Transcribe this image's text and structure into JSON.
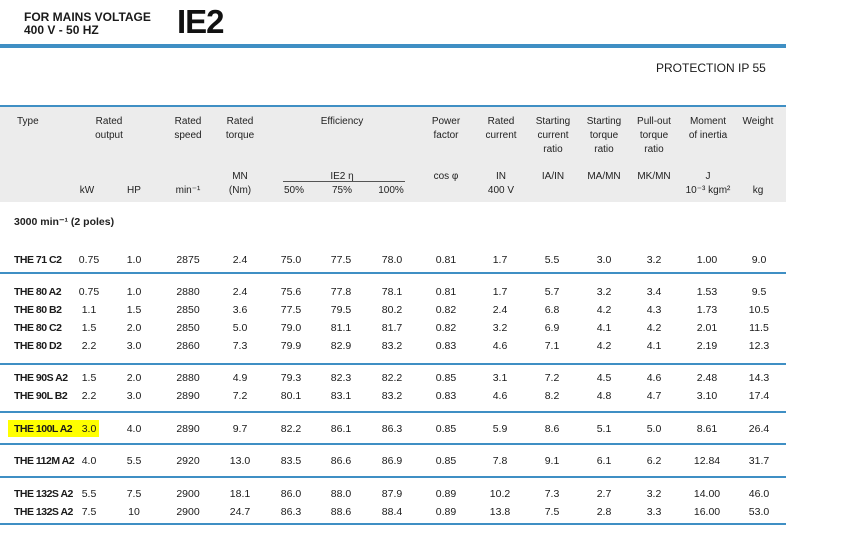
{
  "header": {
    "line1": "FOR MAINS VOLTAGE",
    "line2": "400 V - 50 HZ",
    "class": "IE2",
    "protection": "PROTECTION IP 55"
  },
  "columns": {
    "type": "Type",
    "rated_output": [
      "Rated",
      "output"
    ],
    "rated_speed": [
      "Rated",
      "speed"
    ],
    "rated_torque": [
      "Rated",
      "torque"
    ],
    "efficiency": "Efficiency",
    "power_factor": [
      "Power",
      "factor"
    ],
    "rated_current": [
      "Rated",
      "current"
    ],
    "starting_current_ratio": [
      "Starting",
      "current",
      "ratio"
    ],
    "starting_torque_ratio": [
      "Starting",
      "torque",
      "ratio"
    ],
    "pullout_torque_ratio": [
      "Pull-out",
      "torque",
      "ratio"
    ],
    "moment_of_inertia": [
      "Moment",
      "of inertia"
    ],
    "weight": "Weight"
  },
  "units": {
    "kw": "kW",
    "hp": "HP",
    "speed": "min⁻¹",
    "torque_sym": "MN",
    "torque_unit": "(Nm)",
    "eff_sym": "IE2 η",
    "eff50": "50%",
    "eff75": "75%",
    "eff100": "100%",
    "cos": "cos φ",
    "current_sym": "IN",
    "current_unit": "400 V",
    "ia_in": "IA/IN",
    "ma_mn": "MA/MN",
    "mk_mn": "MK/MN",
    "j": "J",
    "j_unit": "10⁻³ kgm²",
    "kg": "kg"
  },
  "section_title": "3000 min⁻¹ (2 poles)",
  "rows": [
    {
      "type": "THE 71 C2",
      "kw": "0.75",
      "hp": "1.0",
      "speed": "2875",
      "torque": "2.4",
      "e50": "75.0",
      "e75": "77.5",
      "e100": "78.0",
      "pf": "0.81",
      "cur": "1.7",
      "ia": "5.5",
      "ma": "3.0",
      "mk": "3.2",
      "j": "1.00",
      "kg": "9.0"
    },
    {
      "type": "THE 80 A2",
      "kw": "0.75",
      "hp": "1.0",
      "speed": "2880",
      "torque": "2.4",
      "e50": "75.6",
      "e75": "77.8",
      "e100": "78.1",
      "pf": "0.81",
      "cur": "1.7",
      "ia": "5.7",
      "ma": "3.2",
      "mk": "3.4",
      "j": "1.53",
      "kg": "9.5"
    },
    {
      "type": "THE 80 B2",
      "kw": "1.1",
      "hp": "1.5",
      "speed": "2850",
      "torque": "3.6",
      "e50": "77.5",
      "e75": "79.5",
      "e100": "80.2",
      "pf": "0.82",
      "cur": "2.4",
      "ia": "6.8",
      "ma": "4.2",
      "mk": "4.3",
      "j": "1.73",
      "kg": "10.5"
    },
    {
      "type": "THE 80 C2",
      "kw": "1.5",
      "hp": "2.0",
      "speed": "2850",
      "torque": "5.0",
      "e50": "79.0",
      "e75": "81.1",
      "e100": "81.7",
      "pf": "0.82",
      "cur": "3.2",
      "ia": "6.9",
      "ma": "4.1",
      "mk": "4.2",
      "j": "2.01",
      "kg": "11.5"
    },
    {
      "type": "THE 80 D2",
      "kw": "2.2",
      "hp": "3.0",
      "speed": "2860",
      "torque": "7.3",
      "e50": "79.9",
      "e75": "82.9",
      "e100": "83.2",
      "pf": "0.83",
      "cur": "4.6",
      "ia": "7.1",
      "ma": "4.2",
      "mk": "4.1",
      "j": "2.19",
      "kg": "12.3"
    },
    {
      "type": "THE 90S A2",
      "kw": "1.5",
      "hp": "2.0",
      "speed": "2880",
      "torque": "4.9",
      "e50": "79.3",
      "e75": "82.3",
      "e100": "82.2",
      "pf": "0.85",
      "cur": "3.1",
      "ia": "7.2",
      "ma": "4.5",
      "mk": "4.6",
      "j": "2.48",
      "kg": "14.3"
    },
    {
      "type": "THE 90L B2",
      "kw": "2.2",
      "hp": "3.0",
      "speed": "2890",
      "torque": "7.2",
      "e50": "80.1",
      "e75": "83.1",
      "e100": "83.2",
      "pf": "0.83",
      "cur": "4.6",
      "ia": "8.2",
      "ma": "4.8",
      "mk": "4.7",
      "j": "3.10",
      "kg": "17.4"
    },
    {
      "type": "THE 100L A2",
      "kw": "3.0",
      "hp": "4.0",
      "speed": "2890",
      "torque": "9.7",
      "e50": "82.2",
      "e75": "86.1",
      "e100": "86.3",
      "pf": "0.85",
      "cur": "5.9",
      "ia": "8.6",
      "ma": "5.1",
      "mk": "5.0",
      "j": "8.61",
      "kg": "26.4"
    },
    {
      "type": "THE 112M A2",
      "kw": "4.0",
      "hp": "5.5",
      "speed": "2920",
      "torque": "13.0",
      "e50": "83.5",
      "e75": "86.6",
      "e100": "86.9",
      "pf": "0.85",
      "cur": "7.8",
      "ia": "9.1",
      "ma": "6.1",
      "mk": "6.2",
      "j": "12.84",
      "kg": "31.7"
    },
    {
      "type": "THE 132S A2",
      "kw": "5.5",
      "hp": "7.5",
      "speed": "2900",
      "torque": "18.1",
      "e50": "86.0",
      "e75": "88.0",
      "e100": "87.9",
      "pf": "0.89",
      "cur": "10.2",
      "ia": "7.3",
      "ma": "2.7",
      "mk": "3.2",
      "j": "14.00",
      "kg": "46.0"
    },
    {
      "type": "THE 132S A2",
      "kw": "7.5",
      "hp": "10",
      "speed": "2900",
      "torque": "24.7",
      "e50": "86.3",
      "e75": "88.6",
      "e100": "88.4",
      "pf": "0.89",
      "cur": "13.8",
      "ia": "7.5",
      "ma": "2.8",
      "mk": "3.3",
      "j": "16.00",
      "kg": "53.0"
    }
  ]
}
